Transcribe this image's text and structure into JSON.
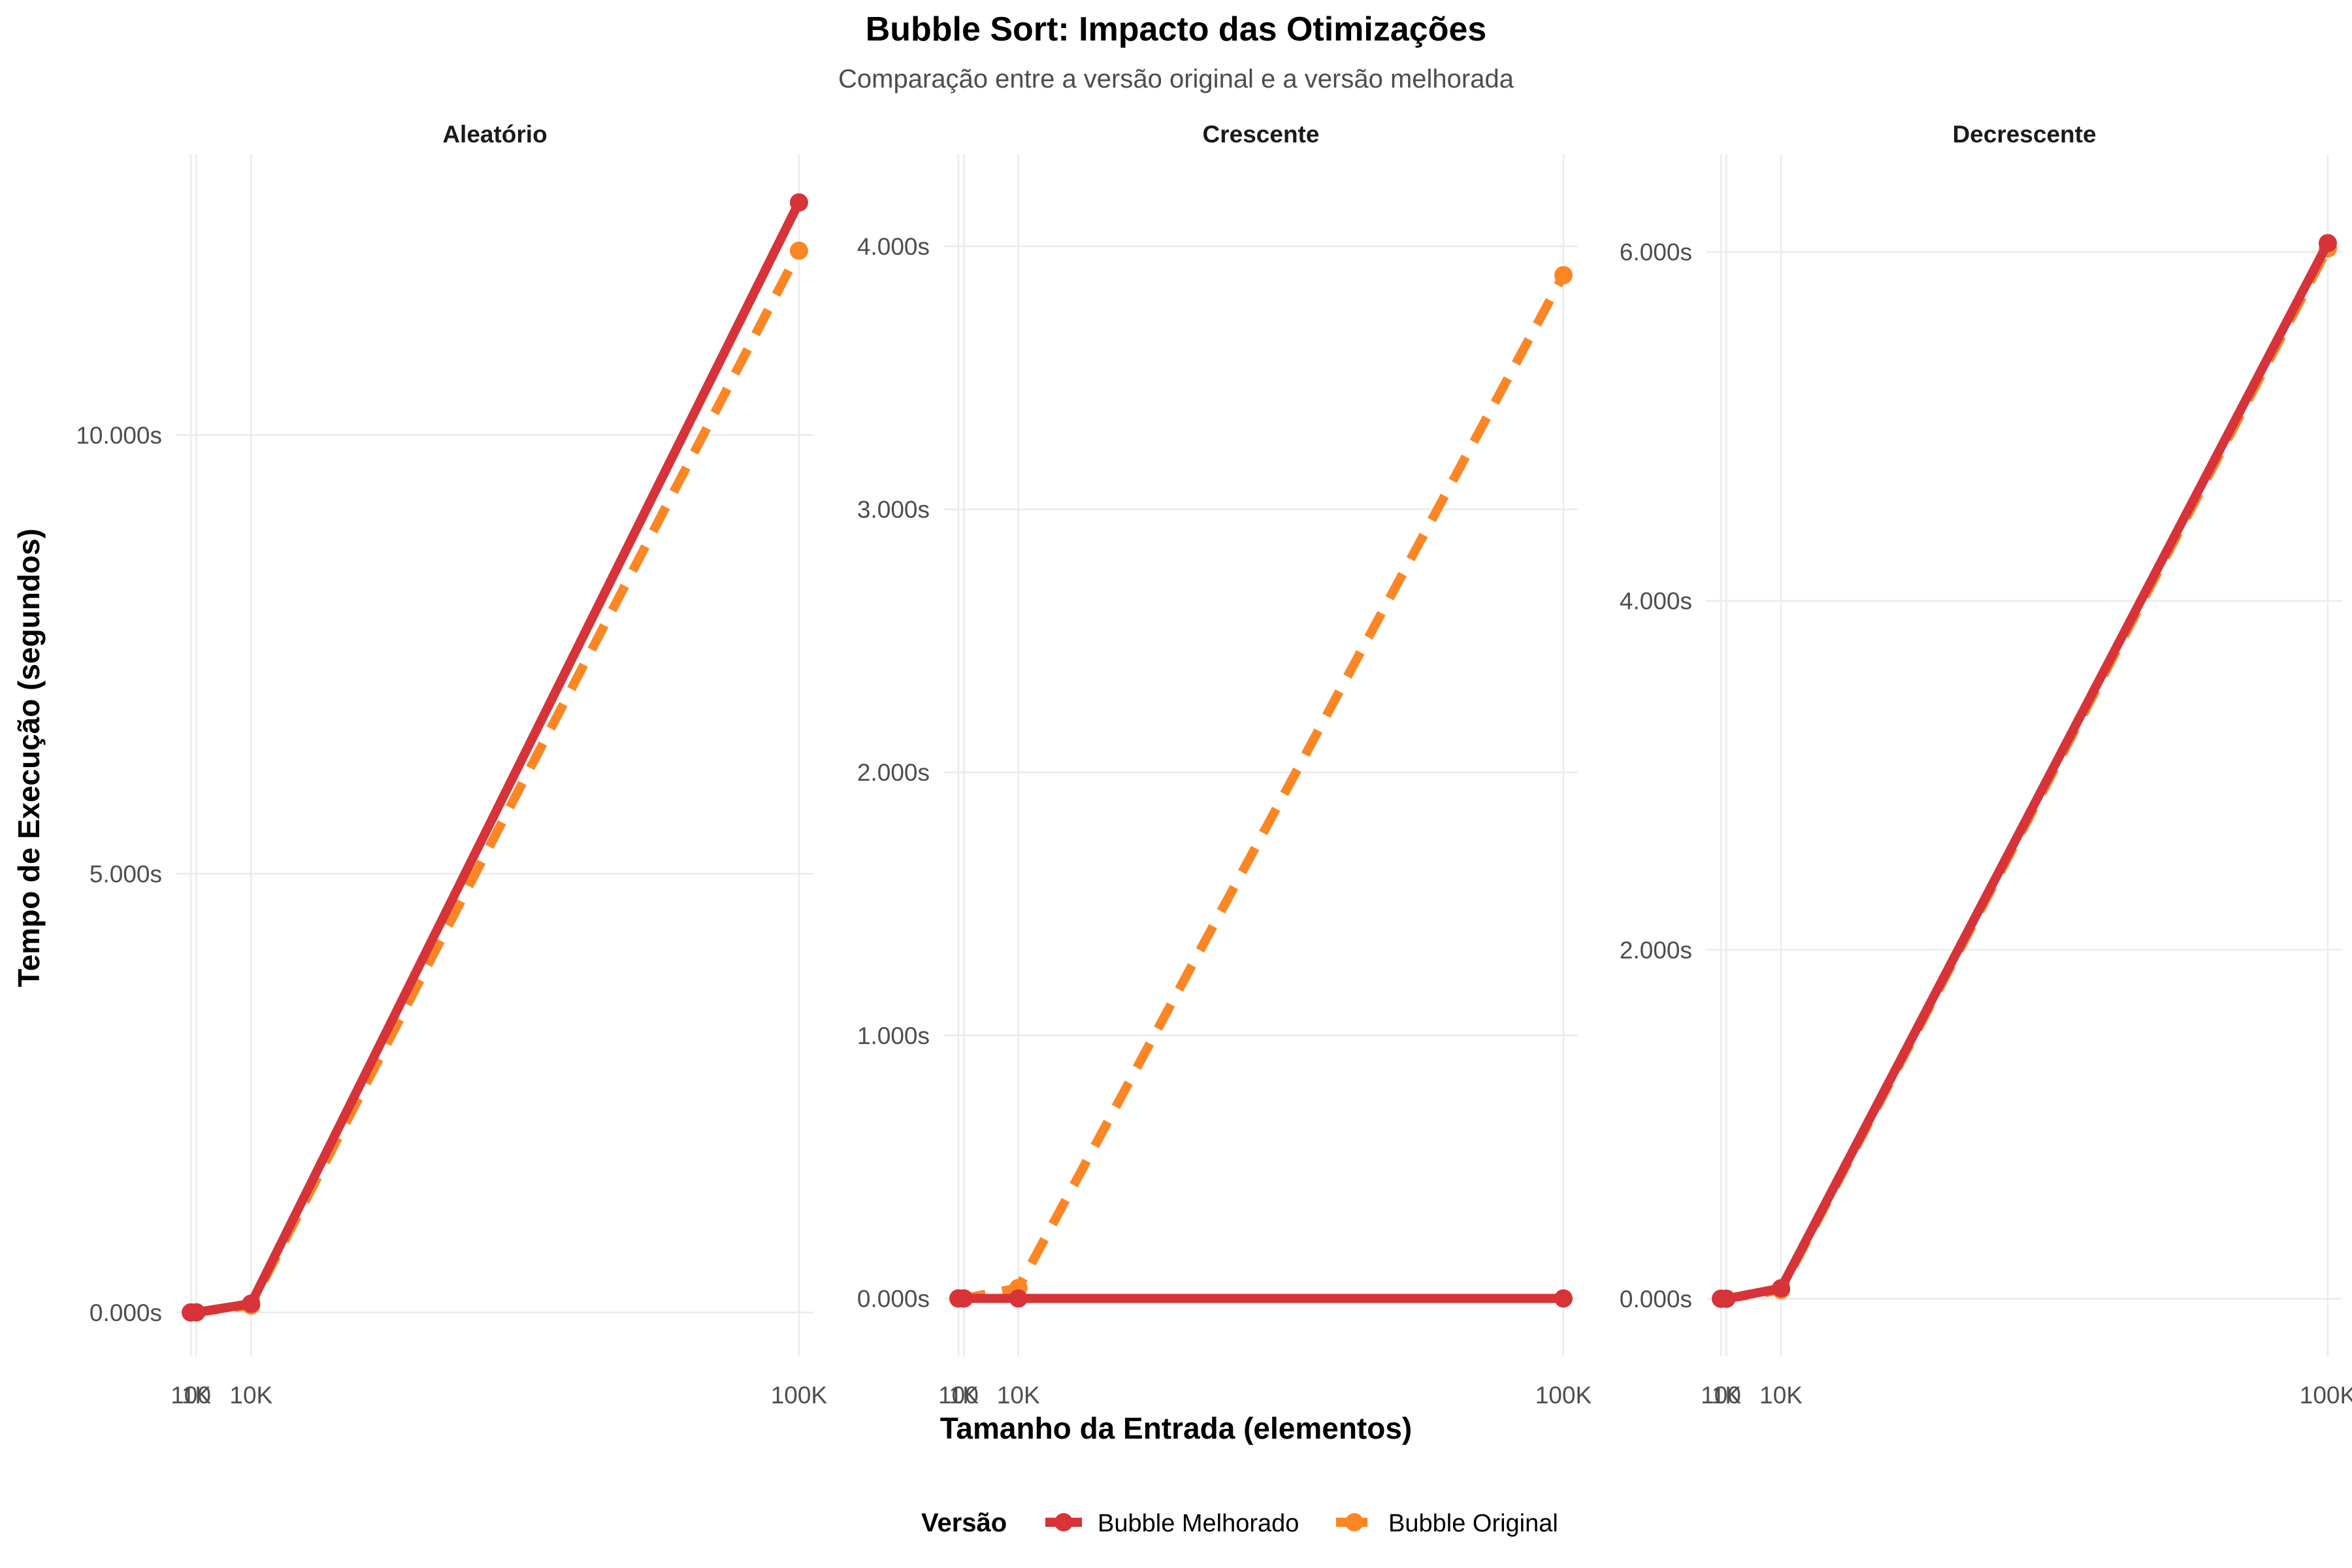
{
  "chart_data": {
    "type": "line",
    "title": "Bubble Sort: Impacto das Otimizações",
    "subtitle": "Comparação entre a versão original e a versão melhorada",
    "xlabel": "Tamanho da Entrada (elementos)",
    "ylabel": "Tempo de Execução (segundos)",
    "x": [
      100,
      1000,
      10000,
      100000
    ],
    "x_tick_values": [
      100,
      1000,
      10000,
      100000
    ],
    "x_tick_labels": [
      "100",
      "1K",
      "10K",
      "100K"
    ],
    "grid": true,
    "legend": {
      "title": "Versão",
      "position": "bottom",
      "entries": [
        "Bubble Melhorado",
        "Bubble Original"
      ]
    },
    "series_colors": {
      "Bubble Melhorado": "#d73338",
      "Bubble Original": "#fd8624"
    },
    "panels": [
      {
        "name": "Aleatório",
        "ylim": [
          -0.5,
          13.2
        ],
        "y_ticks": [
          0,
          5,
          10
        ],
        "y_tick_labels": [
          "0.000s",
          "5.000s",
          "10.000s"
        ],
        "series": [
          {
            "name": "Bubble Melhorado",
            "line_style": "solid",
            "values": [
              0.0,
              0.001,
              0.1,
              12.65
            ]
          },
          {
            "name": "Bubble Original",
            "line_style": "dashed",
            "values": [
              0.0,
              0.001,
              0.08,
              12.1
            ]
          }
        ]
      },
      {
        "name": "Crescente",
        "ylim": [
          -0.22,
          4.35
        ],
        "y_ticks": [
          0,
          1,
          2,
          3,
          4
        ],
        "y_tick_labels": [
          "0.000s",
          "1.000s",
          "2.000s",
          "3.000s",
          "4.000s"
        ],
        "series": [
          {
            "name": "Bubble Melhorado",
            "line_style": "solid",
            "values": [
              0.0,
              0.0,
              0.0,
              0.0
            ]
          },
          {
            "name": "Bubble Original",
            "line_style": "dashed",
            "values": [
              0.0,
              0.0,
              0.04,
              3.89
            ]
          }
        ]
      },
      {
        "name": "Decrescente",
        "ylim": [
          -0.33,
          6.56
        ],
        "y_ticks": [
          0,
          2,
          4,
          6
        ],
        "y_tick_labels": [
          "0.000s",
          "2.000s",
          "4.000s",
          "6.000s"
        ],
        "series": [
          {
            "name": "Bubble Melhorado",
            "line_style": "solid",
            "values": [
              0.0,
              0.0,
              0.06,
              6.05
            ]
          },
          {
            "name": "Bubble Original",
            "line_style": "dashed",
            "values": [
              0.0,
              0.0,
              0.05,
              6.02
            ]
          }
        ]
      }
    ]
  }
}
